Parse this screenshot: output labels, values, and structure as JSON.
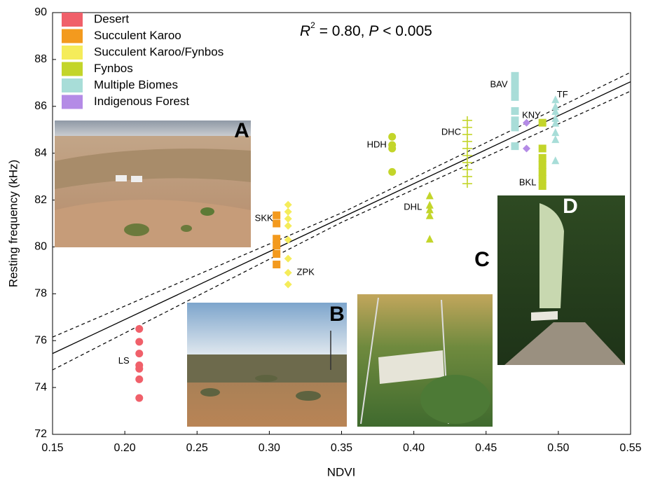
{
  "chart_data": {
    "type": "scatter",
    "annotation": [
      "R",
      "2",
      " = 0.80, ",
      "P",
      " < 0.005"
    ],
    "x_label": "NDVI",
    "y_label": "Resting frequency (kHz)",
    "xlim": [
      0.15,
      0.55
    ],
    "ylim": [
      72,
      90
    ],
    "xticks": [
      0.15,
      {
        "value": 0.2,
        "label": "0.20"
      },
      0.25,
      {
        "value": 0.3,
        "label": "0.30"
      },
      0.35,
      {
        "value": 0.4,
        "label": "0.40"
      },
      0.45,
      {
        "value": 0.5,
        "label": "0.50"
      },
      0.55
    ],
    "yticks": [
      72,
      74,
      76,
      78,
      80,
      82,
      84,
      86,
      88,
      90
    ],
    "legend": "upper left",
    "photos": [
      "A",
      "B",
      "C",
      "D"
    ],
    "fit": {
      "x": [
        0.15,
        0.55
      ],
      "y": [
        75.45,
        87.05
      ],
      "color": "#000000"
    },
    "confidence_band": {
      "x": [
        0.15,
        0.35,
        0.55
      ],
      "upper": [
        76.15,
        81.45,
        87.45
      ],
      "lower": [
        74.75,
        81.05,
        86.65
      ],
      "color": "#000000"
    },
    "series": [
      {
        "name": "Desert",
        "color": "#f0606a",
        "marker": "circle",
        "groups": [
          {
            "label": "LS",
            "x": 0.21,
            "values": [
              76.5,
              75.95,
              75.45,
              74.95,
              74.8,
              74.35,
              73.55
            ]
          }
        ]
      },
      {
        "name": "Succulent Karoo",
        "color": "#f39a1e",
        "marker": "square",
        "groups": [
          {
            "label": "SKK",
            "x": 0.305,
            "values": [
              81.35,
              81.0,
              80.35,
              80.05,
              79.7,
              79.25
            ]
          }
        ]
      },
      {
        "name": "Succulent Karoo/Fynbos",
        "color": "#f5ec5a",
        "marker": "diamond",
        "groups": [
          {
            "label": "ZPK",
            "x": 0.313,
            "values": [
              81.8,
              81.5,
              81.2,
              80.9,
              80.3,
              79.5,
              78.9,
              78.4
            ]
          }
        ]
      },
      {
        "name": "Fynbos",
        "color": "#c3d52a",
        "marker": "mixed",
        "groups": [
          {
            "label": "HDH",
            "x": 0.385,
            "marker": "circle",
            "values": [
              84.7,
              84.35,
              84.2,
              83.2
            ]
          },
          {
            "label": "DHL",
            "x": 0.411,
            "marker": "triangle",
            "values": [
              82.2,
              81.8,
              81.6,
              81.35,
              80.35
            ]
          },
          {
            "label": "DHC",
            "x": 0.437,
            "marker": "plus",
            "values": [
              85.4,
              85.1,
              84.8,
              84.5,
              84.2,
              83.9,
              83.6,
              83.3,
              83.0,
              82.7
            ]
          },
          {
            "label": "BKL",
            "x": 0.489,
            "marker": "square",
            "values": [
              85.3,
              84.2,
              83.8,
              83.5,
              83.2,
              82.9,
              82.6
            ]
          }
        ]
      },
      {
        "name": "Multiple Biomes",
        "color": "#a8ddd8",
        "marker": "mixed",
        "groups": [
          {
            "label": "BAV",
            "x": 0.47,
            "marker": "square",
            "values": [
              87.3,
              87.0,
              86.7,
              86.4,
              85.8,
              85.4,
              85.1,
              84.3
            ]
          },
          {
            "label": "TF",
            "x": 0.498,
            "marker": "triangle",
            "values": [
              86.3,
              86.0,
              85.8,
              85.5,
              85.3,
              84.9,
              84.6,
              83.7
            ]
          }
        ]
      },
      {
        "name": "Indigenous Forest",
        "color": "#b48be6",
        "marker": "diamond",
        "groups": [
          {
            "label": "KNY",
            "x": 0.478,
            "values": [
              85.3,
              84.2
            ]
          }
        ]
      }
    ]
  }
}
